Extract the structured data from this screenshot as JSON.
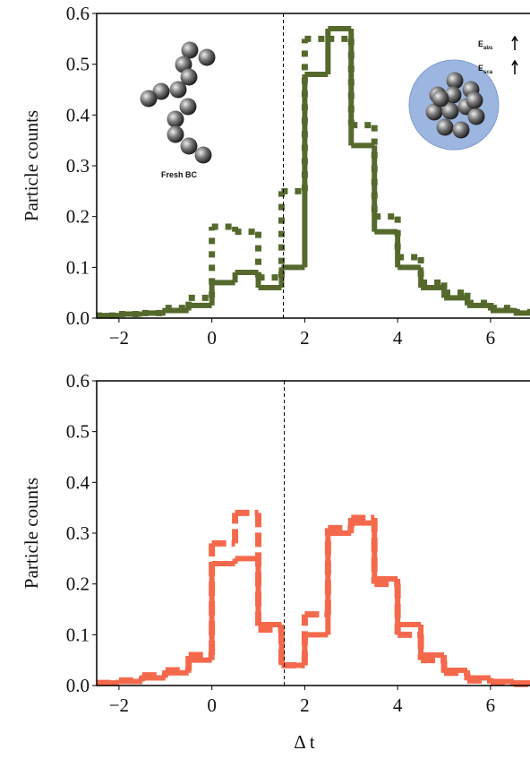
{
  "chart_data": [
    {
      "type": "histogram",
      "ylabel": "Particle counts",
      "xlim": [
        -2.48,
        6.85
      ],
      "ylim": [
        0,
        0.6
      ],
      "xticks": [
        {
          "value": -2,
          "label": "−2"
        },
        0,
        2,
        4,
        6
      ],
      "yticks": [
        {
          "value": 0,
          "label": "0.0"
        },
        0.1,
        0.2,
        0.3,
        0.4,
        0.5,
        0.6
      ],
      "vline": 1.54,
      "bins": [
        -2.5,
        -2,
        -1.5,
        -1,
        -0.5,
        0,
        0.5,
        1,
        1.5,
        2,
        2.5,
        3,
        3.5,
        4,
        4.5,
        5,
        5.5,
        6,
        6.5,
        7
      ],
      "series": [
        {
          "color": "#55692c",
          "style": "solid",
          "values": [
            0.005,
            0.008,
            0.01,
            0.015,
            0.025,
            0.07,
            0.09,
            0.06,
            0.1,
            0.48,
            0.57,
            0.34,
            0.17,
            0.1,
            0.06,
            0.04,
            0.025,
            0.015,
            0.01
          ]
        },
        {
          "color": "#55692c",
          "style": "dotted",
          "values": [
            0.005,
            0.008,
            0.01,
            0.02,
            0.04,
            0.18,
            0.17,
            0.08,
            0.25,
            0.55,
            0.55,
            0.38,
            0.2,
            0.12,
            0.07,
            0.05,
            0.03,
            0.02,
            0.012
          ]
        }
      ],
      "inset_labels": {
        "fresh": "Fresh BC",
        "e_abs": {
          "base": "E",
          "sub": "abs"
        },
        "e_sca": {
          "base": "E",
          "sub": "sca"
        }
      }
    },
    {
      "type": "histogram",
      "ylabel": "Particle counts",
      "xlabel": "Δ t",
      "xlim": [
        -2.48,
        6.85
      ],
      "ylim": [
        0,
        0.6
      ],
      "xticks": [
        {
          "value": -2,
          "label": "−2"
        },
        0,
        2,
        4,
        6
      ],
      "yticks": [
        {
          "value": 0,
          "label": "0.0"
        },
        0.1,
        0.2,
        0.3,
        0.4,
        0.5,
        0.6
      ],
      "vline": 1.56,
      "bins": [
        -2.5,
        -2,
        -1.5,
        -1,
        -0.5,
        0,
        0.5,
        1,
        1.5,
        2,
        2.5,
        3,
        3.5,
        4,
        4.5,
        5,
        5.5,
        6,
        6.5,
        7
      ],
      "series": [
        {
          "color": "#f4694c",
          "style": "solid",
          "values": [
            0.005,
            0.008,
            0.015,
            0.025,
            0.05,
            0.24,
            0.25,
            0.12,
            0.04,
            0.1,
            0.3,
            0.32,
            0.21,
            0.12,
            0.06,
            0.03,
            0.015,
            0.008,
            0.005
          ]
        },
        {
          "color": "#f4694c",
          "style": "dashed",
          "values": [
            0.005,
            0.01,
            0.02,
            0.03,
            0.06,
            0.28,
            0.34,
            0.11,
            0.04,
            0.14,
            0.31,
            0.33,
            0.2,
            0.1,
            0.05,
            0.025,
            0.01,
            0.005,
            0.003
          ]
        }
      ]
    }
  ]
}
